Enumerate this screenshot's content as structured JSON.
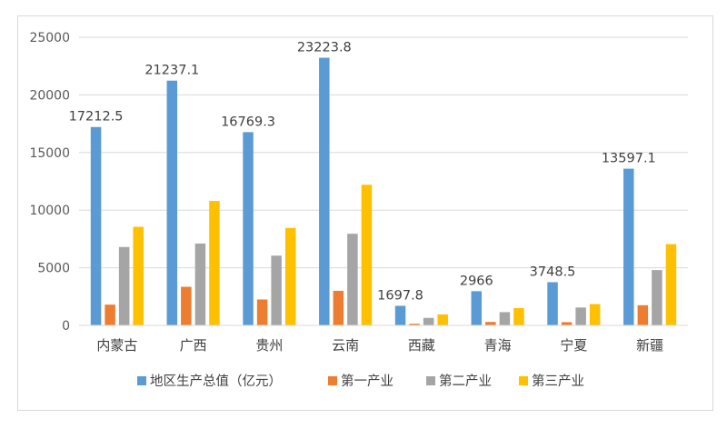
{
  "chart_data": {
    "type": "bar",
    "categories": [
      "内蒙古",
      "广西",
      "贵州",
      "云南",
      "西藏",
      "青海",
      "宁夏",
      "新疆"
    ],
    "series": [
      {
        "name": "地区生产总值（亿元）",
        "color": "#5B9BD5",
        "values": [
          17212.5,
          21237.1,
          16769.3,
          23223.8,
          1697.8,
          2966,
          3748.5,
          13597.1
        ]
      },
      {
        "name": "第一产业",
        "color": "#ED7D31",
        "values": [
          1800,
          3350,
          2250,
          3000,
          140,
          300,
          280,
          1750
        ]
      },
      {
        "name": "第二产业",
        "color": "#A5A5A5",
        "values": [
          6800,
          7100,
          6050,
          7950,
          650,
          1150,
          1550,
          4800
        ]
      },
      {
        "name": "第三产业",
        "color": "#FFC000",
        "values": [
          8550,
          10800,
          8450,
          12200,
          950,
          1500,
          1850,
          7050
        ]
      }
    ],
    "data_labels": [
      "17212.5",
      "21237.1",
      "16769.3",
      "23223.8",
      "1697.8",
      "2966",
      "3748.5",
      "13597.1"
    ],
    "y_ticks": [
      "0",
      "5000",
      "10000",
      "15000",
      "20000",
      "25000"
    ],
    "ylim": [
      0,
      25000
    ],
    "grid": true,
    "legend_position": "bottom",
    "title": "",
    "xlabel": "",
    "ylabel": ""
  }
}
